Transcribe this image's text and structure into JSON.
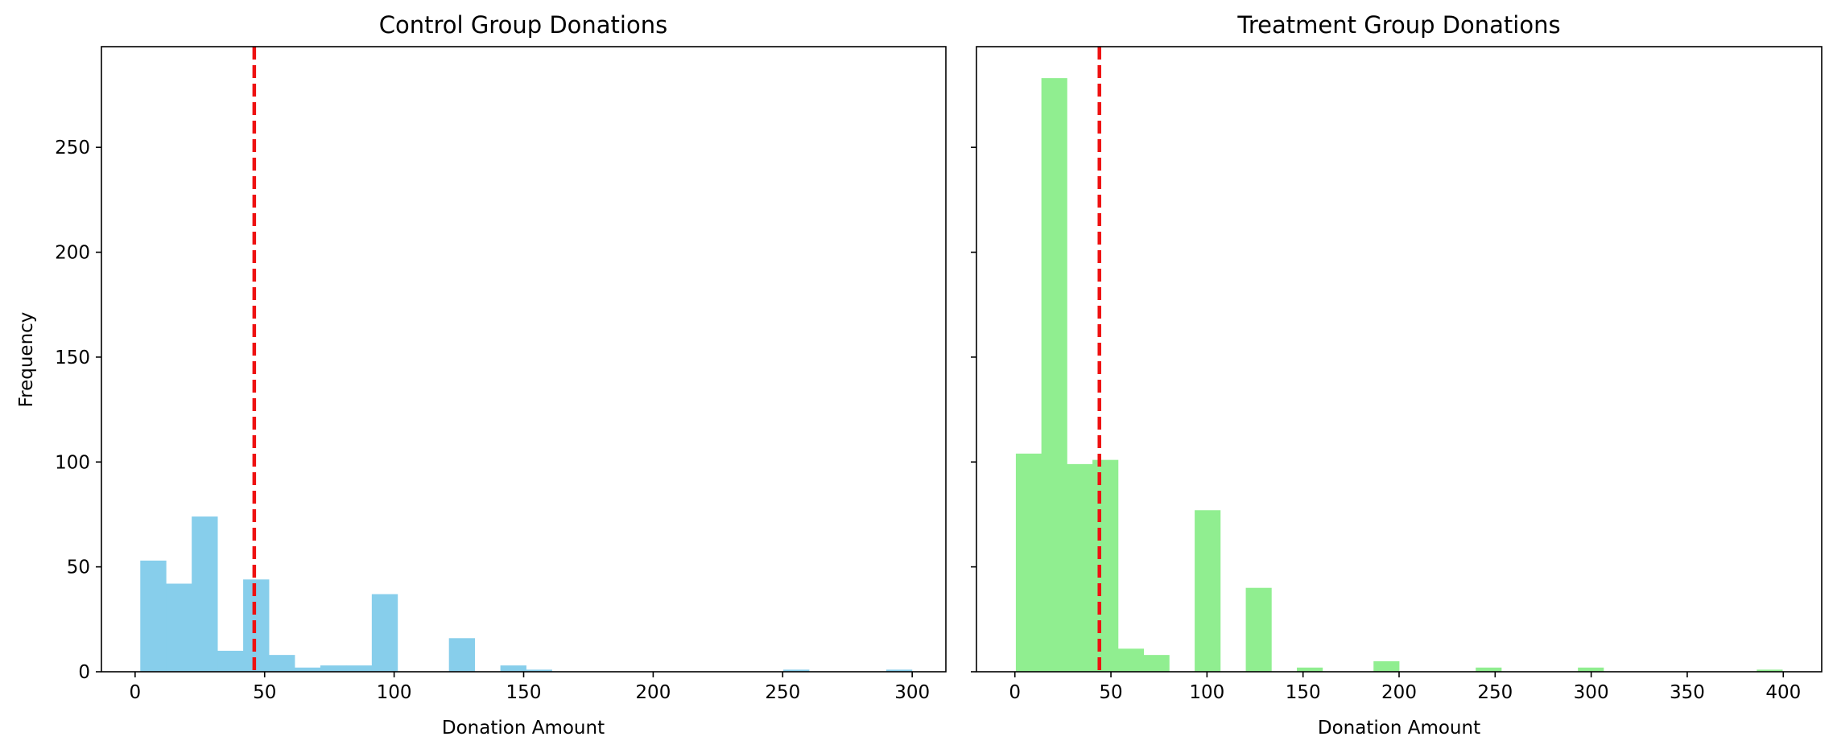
{
  "chart_data": [
    {
      "type": "bar",
      "subtype": "histogram",
      "title": "Control Group Donations",
      "xlabel": "Donation Amount",
      "ylabel": "Frequency",
      "xlim": [
        -13,
        313
      ],
      "ylim": [
        0,
        298
      ],
      "xticks": [
        0,
        50,
        100,
        150,
        200,
        250,
        300
      ],
      "yticks": [
        0,
        50,
        100,
        150,
        200,
        250
      ],
      "show_yticklabels": true,
      "bar_color": "#87ceeb",
      "bin_start": 2,
      "bin_width": 9.93,
      "values": [
        53,
        42,
        74,
        10,
        44,
        8,
        2,
        3,
        3,
        37,
        0,
        0,
        16,
        0,
        3,
        1,
        0,
        0,
        0,
        0,
        0,
        0,
        0,
        0,
        0,
        1,
        0,
        0,
        0,
        1
      ],
      "mean_line": {
        "value": 46,
        "color": "#ee1111",
        "style": "dashed"
      }
    },
    {
      "type": "bar",
      "subtype": "histogram",
      "title": "Treatment Group Donations",
      "xlabel": "Donation Amount",
      "ylabel": "",
      "xlim": [
        -20,
        420
      ],
      "ylim": [
        0,
        298
      ],
      "xticks": [
        0,
        50,
        100,
        150,
        200,
        250,
        300,
        350,
        400
      ],
      "yticks": [
        0,
        50,
        100,
        150,
        200,
        250
      ],
      "show_yticklabels": false,
      "bar_color": "#90ee90",
      "bin_start": 0.5,
      "bin_width": 13.3,
      "values": [
        104,
        283,
        99,
        101,
        11,
        8,
        0,
        77,
        0,
        40,
        0,
        2,
        0,
        0,
        5,
        0,
        0,
        0,
        2,
        0,
        0,
        0,
        2,
        0,
        0,
        0,
        0,
        0,
        0,
        1
      ],
      "mean_line": {
        "value": 44,
        "color": "#ee1111",
        "style": "dashed"
      }
    }
  ]
}
